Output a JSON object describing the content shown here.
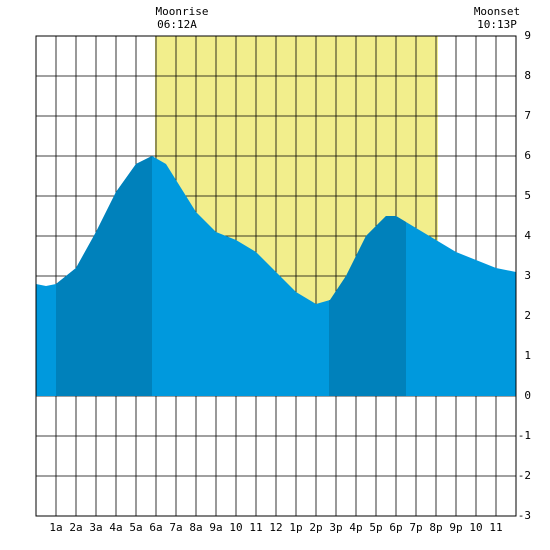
{
  "chart_data": {
    "type": "area",
    "annotations": [
      {
        "label": "Moonrise",
        "time": "06:12A"
      },
      {
        "label": "Moonset",
        "time": "10:13P"
      }
    ],
    "x": [
      0,
      0.5,
      1,
      2,
      3,
      4,
      5,
      5.8,
      6.5,
      7,
      8,
      9,
      10,
      11,
      12,
      13,
      14,
      14.7,
      15.5,
      16.5,
      17.5,
      18,
      19,
      20,
      21,
      22,
      23,
      24
    ],
    "series": [
      {
        "color": "#0099dd",
        "values": [
          2.8,
          2.75,
          2.8,
          3.2,
          4.1,
          5.1,
          5.8,
          6.0,
          5.8,
          5.4,
          4.6,
          4.1,
          3.9,
          3.6,
          3.1,
          2.6,
          2.3,
          2.4,
          3.0,
          4.0,
          4.5,
          4.5,
          4.2,
          3.9,
          3.6,
          3.4,
          3.2,
          3.1
        ]
      }
    ],
    "highlight_color": "#0081bb",
    "highlight_ranges": [
      [
        1,
        5.8
      ],
      [
        14.65,
        18.5
      ]
    ],
    "daylight": [
      5.95,
      20.1
    ],
    "daylight_color": "#f2ee8c",
    "xlim": [
      0,
      24
    ],
    "ylim": [
      -3,
      9
    ],
    "xticks": [
      {
        "value": 1,
        "label": "1a"
      },
      {
        "value": 2,
        "label": "2a"
      },
      {
        "value": 3,
        "label": "3a"
      },
      {
        "value": 4,
        "label": "4a"
      },
      {
        "value": 5,
        "label": "5a"
      },
      {
        "value": 6,
        "label": "6a"
      },
      {
        "value": 7,
        "label": "7a"
      },
      {
        "value": 8,
        "label": "8a"
      },
      {
        "value": 9,
        "label": "9a"
      },
      10,
      11,
      12,
      {
        "value": 13,
        "label": "1p"
      },
      {
        "value": 14,
        "label": "2p"
      },
      {
        "value": 15,
        "label": "3p"
      },
      {
        "value": 16,
        "label": "4p"
      },
      {
        "value": 17,
        "label": "5p"
      },
      {
        "value": 18,
        "label": "6p"
      },
      {
        "value": 19,
        "label": "7p"
      },
      {
        "value": 20,
        "label": "8p"
      },
      {
        "value": 21,
        "label": "9p"
      },
      {
        "value": 22,
        "label": "10"
      },
      {
        "value": 23,
        "label": "11"
      }
    ],
    "yticks": [
      -3,
      -2,
      -1,
      0,
      1,
      2,
      3,
      4,
      5,
      6,
      7,
      8,
      9
    ],
    "grid": true
  }
}
